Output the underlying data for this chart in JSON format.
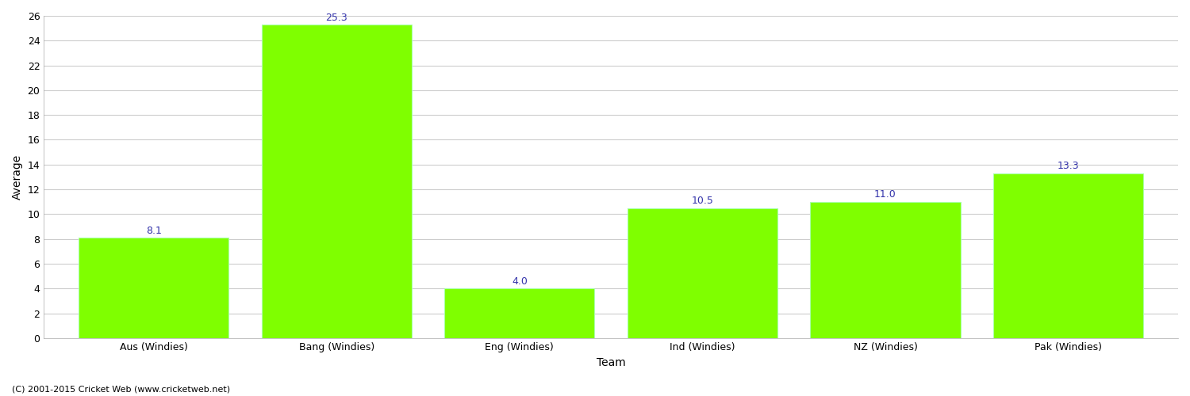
{
  "categories": [
    "Aus (Windies)",
    "Bang (Windies)",
    "Eng (Windies)",
    "Ind (Windies)",
    "NZ (Windies)",
    "Pak (Windies)"
  ],
  "values": [
    8.1,
    25.3,
    4.0,
    10.5,
    11.0,
    13.3
  ],
  "bar_color": "#7fff00",
  "bar_edge_color": "#aaffaa",
  "label_color": "#3333aa",
  "xlabel": "Team",
  "ylabel": "Average",
  "ylim": [
    0,
    26
  ],
  "yticks": [
    0,
    2,
    4,
    6,
    8,
    10,
    12,
    14,
    16,
    18,
    20,
    22,
    24,
    26
  ],
  "grid_color": "#cccccc",
  "background_color": "#ffffff",
  "label_fontsize": 9,
  "axis_label_fontsize": 10,
  "tick_fontsize": 9,
  "footer": "(C) 2001-2015 Cricket Web (www.cricketweb.net)",
  "bar_width": 0.82
}
